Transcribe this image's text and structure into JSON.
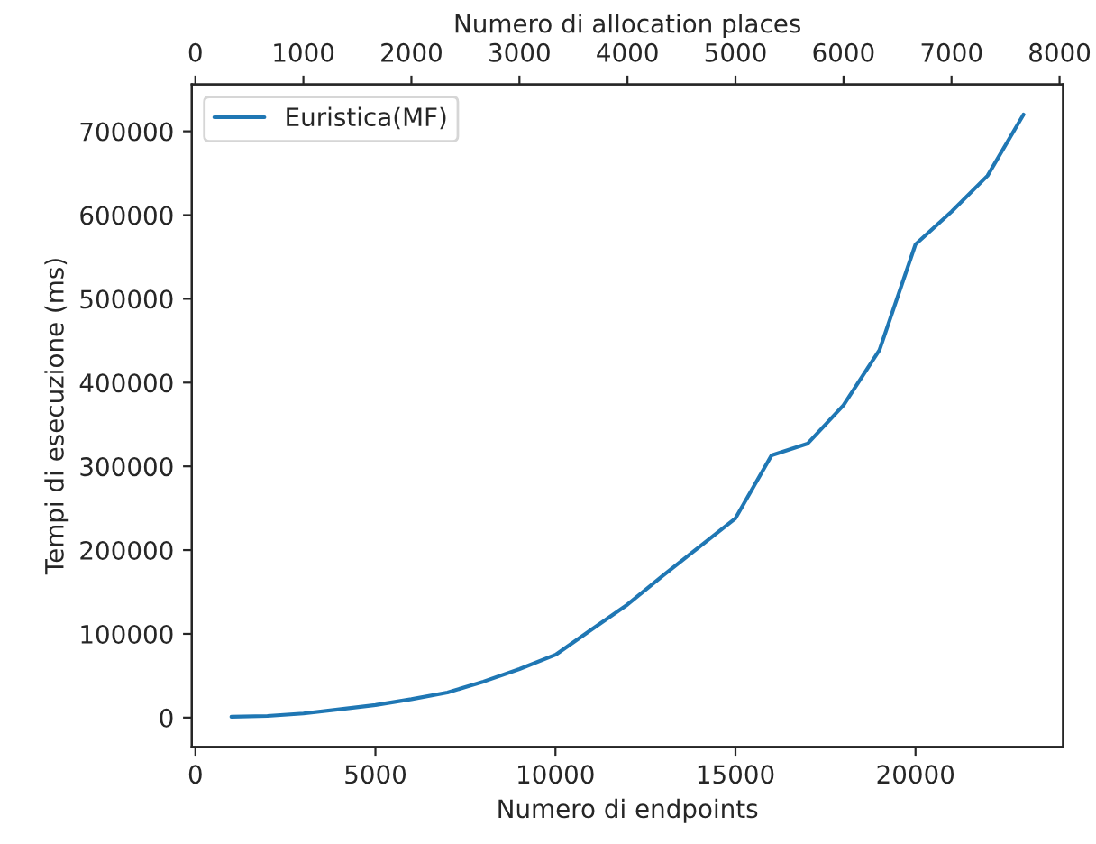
{
  "chart_data": {
    "type": "line",
    "xlabel": "Numero di endpoints",
    "ylabel": "Tempi di esecuzione (ms)",
    "x2label": "Numero di allocation places",
    "x": [
      1000,
      2000,
      3000,
      4000,
      5000,
      6000,
      7000,
      8000,
      9000,
      10000,
      11000,
      12000,
      13000,
      14000,
      15000,
      16000,
      17000,
      18000,
      19000,
      20000,
      21000,
      22000,
      23000
    ],
    "series": [
      {
        "name": "Euristica(MF)",
        "color": "#1f77b4",
        "values": [
          1000,
          2000,
          5000,
          10000,
          15000,
          22000,
          30000,
          43000,
          58000,
          75000,
          105000,
          135000,
          170000,
          204000,
          238000,
          313000,
          327000,
          373000,
          439000,
          565000,
          604000,
          647000,
          720000
        ]
      }
    ],
    "xlim": [
      -100,
      24100
    ],
    "xticks": [
      0,
      5000,
      10000,
      15000,
      20000
    ],
    "x2lim": [
      -33,
      8033
    ],
    "x2ticks": [
      0,
      1000,
      2000,
      3000,
      4000,
      5000,
      6000,
      7000,
      8000
    ],
    "ylim": [
      -35000,
      756000
    ],
    "yticks": [
      0,
      100000,
      200000,
      300000,
      400000,
      500000,
      600000,
      700000
    ],
    "legend": "top left",
    "grid": false
  }
}
